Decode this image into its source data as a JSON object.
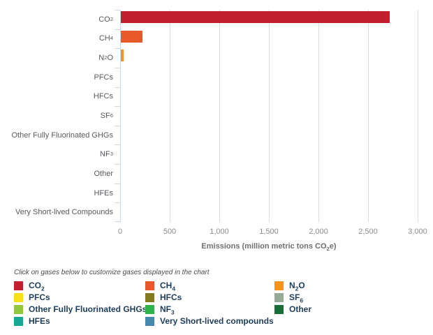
{
  "note": "Click on gases below to customize gases displayed in the chart",
  "colors": {
    "axis_line": "#c7d9ea",
    "gridline": "#dcdcdc",
    "tick_label": "#8a8e91",
    "category_label": "#565a5f",
    "axis_title": "#6d6e71",
    "legend_text": "#1d3d5a",
    "note_text": "#4a4a4a"
  },
  "chart_data": {
    "type": "bar",
    "orientation": "horizontal",
    "title": "",
    "xlabel": "Emissions (million metric tons CO2e)",
    "xlabel_parts": [
      {
        "t": "Emissions (million metric tons CO"
      },
      {
        "t": "2",
        "sub": true
      },
      {
        "t": "e)"
      }
    ],
    "xlim": [
      0,
      3000
    ],
    "grid": true,
    "categories": [
      "CO2",
      "CH4",
      "N2O",
      "PFCs",
      "HFCs",
      "SF6",
      "Other Fully Fluorinated GHGs",
      "NF3",
      "Other",
      "HFEs",
      "Very Short-lived Compounds"
    ],
    "values": [
      2710,
      220,
      30,
      0,
      0,
      0,
      0,
      0,
      0,
      0,
      0
    ],
    "x_ticks": [
      {
        "v": 0,
        "label": "0"
      },
      {
        "v": 500,
        "label": "500"
      },
      {
        "v": 1000,
        "label": "1,000"
      },
      {
        "v": 1500,
        "label": "1,500"
      },
      {
        "v": 2000,
        "label": "2,000"
      },
      {
        "v": 2500,
        "label": "2,500"
      },
      {
        "v": 3000,
        "label": "3,000"
      }
    ],
    "bars": [
      {
        "id": "co2",
        "parts": [
          {
            "t": "CO"
          },
          {
            "t": "2",
            "sub": true
          }
        ],
        "value": 2710,
        "color": "#c2202f"
      },
      {
        "id": "ch4",
        "parts": [
          {
            "t": "CH"
          },
          {
            "t": "4",
            "sub": true
          }
        ],
        "value": 220,
        "color": "#e7592b"
      },
      {
        "id": "n2o",
        "parts": [
          {
            "t": "N"
          },
          {
            "t": "2",
            "sub": true
          },
          {
            "t": "O"
          }
        ],
        "value": 30,
        "color": "#f6921e"
      },
      {
        "id": "pfcs",
        "parts": [
          {
            "t": "PFCs"
          }
        ],
        "value": 0,
        "color": "#f5e01a"
      },
      {
        "id": "hfcs",
        "parts": [
          {
            "t": "HFCs"
          }
        ],
        "value": 0,
        "color": "#837a20"
      },
      {
        "id": "sf6",
        "parts": [
          {
            "t": "SF"
          },
          {
            "t": "6",
            "sub": true
          }
        ],
        "value": 0,
        "color": "#95ab95"
      },
      {
        "id": "other-fully-fluorinated-ghgs",
        "parts": [
          {
            "t": "Other Fully Fluorinated GHGs"
          }
        ],
        "value": 0,
        "color": "#92c83e"
      },
      {
        "id": "nf3",
        "parts": [
          {
            "t": "NF"
          },
          {
            "t": "3",
            "sub": true
          }
        ],
        "value": 0,
        "color": "#2fb44b"
      },
      {
        "id": "other",
        "parts": [
          {
            "t": "Other"
          }
        ],
        "value": 0,
        "color": "#186d39"
      },
      {
        "id": "hfes",
        "parts": [
          {
            "t": "HFEs"
          }
        ],
        "value": 0,
        "color": "#17a794"
      },
      {
        "id": "very-short-lived-compounds",
        "parts": [
          {
            "t": "Very Short-lived Compounds"
          }
        ],
        "value": 0,
        "color": "#4587ad"
      }
    ]
  },
  "legend": {
    "note": "Click on gases below to customize gases displayed in the chart",
    "items": [
      {
        "id": "co2",
        "parts": [
          {
            "t": "CO"
          },
          {
            "t": "2",
            "sub": true
          }
        ],
        "color": "#c2202f"
      },
      {
        "id": "ch4",
        "parts": [
          {
            "t": "CH"
          },
          {
            "t": "4",
            "sub": true
          }
        ],
        "color": "#e7592b"
      },
      {
        "id": "n2o",
        "parts": [
          {
            "t": "N"
          },
          {
            "t": "2",
            "sub": true
          },
          {
            "t": "O"
          }
        ],
        "color": "#f6921e"
      },
      {
        "id": "pfcs",
        "parts": [
          {
            "t": "PFCs"
          }
        ],
        "color": "#f5e01a"
      },
      {
        "id": "hfcs",
        "parts": [
          {
            "t": "HFCs"
          }
        ],
        "color": "#837a20"
      },
      {
        "id": "sf6",
        "parts": [
          {
            "t": "SF"
          },
          {
            "t": "6",
            "sub": true
          }
        ],
        "color": "#95ab95"
      },
      {
        "id": "other-fully-fluorinated-ghgs",
        "parts": [
          {
            "t": "Other Fully Fluorinated GHGs"
          }
        ],
        "color": "#92c83e"
      },
      {
        "id": "nf3",
        "parts": [
          {
            "t": "NF"
          },
          {
            "t": "3",
            "sub": true
          }
        ],
        "color": "#2fb44b"
      },
      {
        "id": "other",
        "parts": [
          {
            "t": "Other"
          }
        ],
        "color": "#186d39"
      },
      {
        "id": "hfes",
        "parts": [
          {
            "t": "HFEs"
          }
        ],
        "color": "#17a794"
      },
      {
        "id": "very-short-lived-compounds",
        "parts": [
          {
            "t": "Very Short-lived compounds"
          }
        ],
        "color": "#4587ad"
      }
    ]
  }
}
